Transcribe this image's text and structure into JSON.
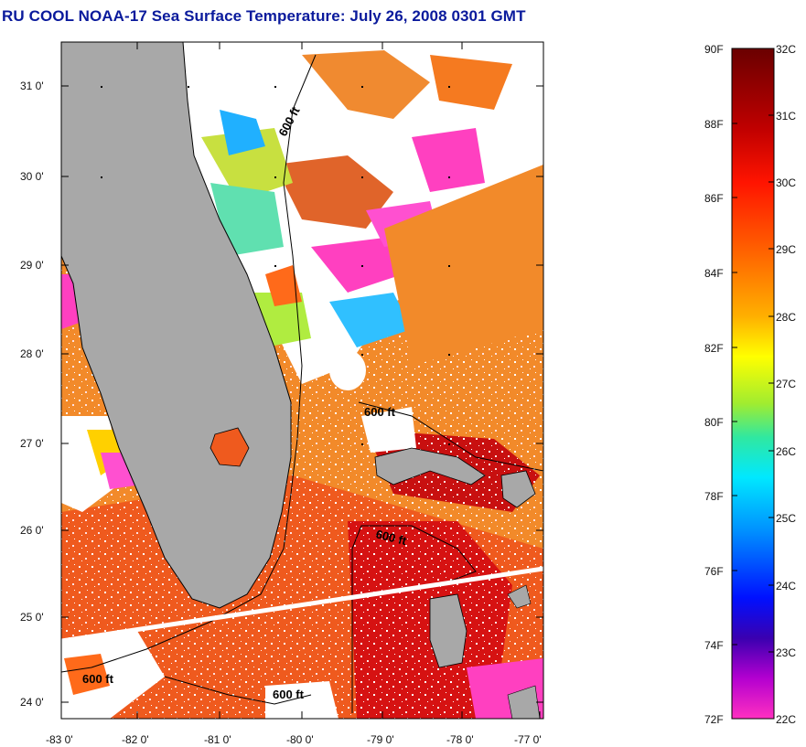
{
  "title": "RU COOL  NOAA-17  Sea Surface Temperature:  July 26, 2008 0301 GMT",
  "map": {
    "lat_labels": [
      "31 0'",
      "30 0'",
      "29 0'",
      "28 0'",
      "27 0'",
      "26 0'",
      "25 0'",
      "24 0'"
    ],
    "lon_labels": [
      "-83 0'",
      "-82 0'",
      "-81 0'",
      "-80 0'",
      "-79 0'",
      "-78 0'",
      "-77 0'"
    ],
    "contour_labels": [
      "600 ft",
      "600 ft",
      "600 ft",
      "600 ft",
      "600 ft"
    ],
    "land_color": "#a8a8a8",
    "track_color": "#ffffff"
  },
  "colorbar": {
    "fahrenheit_labels": [
      "90F",
      "88F",
      "86F",
      "84F",
      "82F",
      "80F",
      "78F",
      "76F",
      "74F",
      "72F"
    ],
    "celsius_labels": [
      "32C",
      "31C",
      "30C",
      "29C",
      "28C",
      "27C",
      "26C",
      "25C",
      "24C",
      "23C",
      "22C"
    ],
    "colors": [
      "#7a0000",
      "#c80000",
      "#ff1a00",
      "#ff6a00",
      "#ffb000",
      "#ffff00",
      "#90e830",
      "#00e8b0",
      "#00e0ff",
      "#0090ff",
      "#0020ff",
      "#3000c0",
      "#c000d0",
      "#ff30c0"
    ]
  }
}
